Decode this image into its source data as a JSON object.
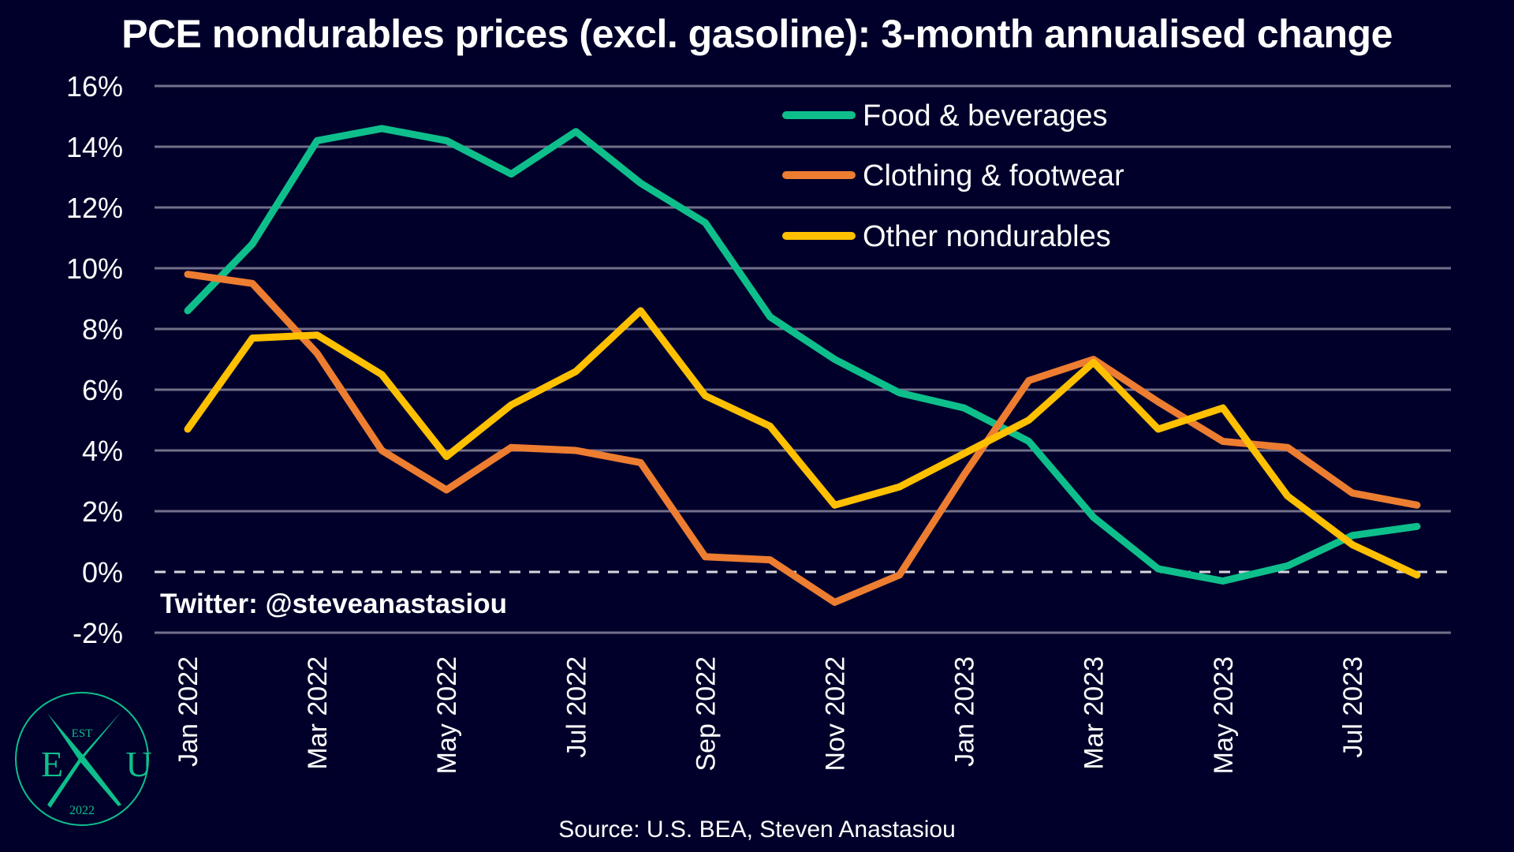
{
  "chart_data": {
    "type": "line",
    "title": "PCE nondurables prices (excl. gasoline): 3-month annualised change",
    "xlabel": "",
    "ylabel": "",
    "x": [
      "Jan 2022",
      "Feb 2022",
      "Mar 2022",
      "Apr 2022",
      "May 2022",
      "Jun 2022",
      "Jul 2022",
      "Aug 2022",
      "Sep 2022",
      "Oct 2022",
      "Nov 2022",
      "Dec 2022",
      "Jan 2023",
      "Feb 2023",
      "Mar 2023",
      "Apr 2023",
      "May 2023",
      "Jun 2023",
      "Jul 2023",
      "Aug 2023"
    ],
    "x_tick_labels": [
      "Jan 2022",
      "Mar 2022",
      "May 2022",
      "Jul 2022",
      "Sep 2022",
      "Nov 2022",
      "Jan 2023",
      "Mar 2023",
      "May 2023",
      "Jul 2023"
    ],
    "ylim": [
      -2,
      16
    ],
    "y_ticks": [
      -2,
      0,
      2,
      4,
      6,
      8,
      10,
      12,
      14,
      16
    ],
    "y_tick_labels": [
      "-2%",
      "0%",
      "2%",
      "4%",
      "6%",
      "8%",
      "10%",
      "12%",
      "14%",
      "16%"
    ],
    "grid": true,
    "zero_line": "dashed",
    "legend_position": "top-right",
    "series": [
      {
        "name": "Food & beverages",
        "color": "#0ebf8c",
        "values": [
          8.6,
          10.8,
          14.2,
          14.6,
          14.2,
          13.1,
          14.5,
          12.8,
          11.5,
          8.4,
          7.0,
          5.9,
          5.4,
          4.3,
          1.8,
          0.1,
          -0.3,
          0.2,
          1.2,
          1.5
        ]
      },
      {
        "name": "Clothing & footwear",
        "color": "#ed7d31",
        "values": [
          9.8,
          9.5,
          7.2,
          4.0,
          2.7,
          4.1,
          4.0,
          3.6,
          0.5,
          0.4,
          -1.0,
          -0.1,
          3.2,
          6.3,
          7.0,
          5.6,
          4.3,
          4.1,
          2.6,
          2.2
        ]
      },
      {
        "name": "Other nondurables",
        "color": "#ffc000",
        "values": [
          4.7,
          7.7,
          7.8,
          6.5,
          3.8,
          5.5,
          6.6,
          8.6,
          5.8,
          4.8,
          2.2,
          2.8,
          3.9,
          5.0,
          6.9,
          4.7,
          5.4,
          2.5,
          0.9,
          -0.1
        ]
      }
    ]
  },
  "annotations": {
    "watermark": "Twitter: @steveanastasiou",
    "source": "Source: U.S. BEA, Steven Anastasiou"
  },
  "logo": {
    "top_text": "EST",
    "left_letter": "E",
    "right_letter": "U",
    "bottom_text": "2022",
    "color": "#0ebf8c"
  },
  "colors": {
    "background": "#00002a",
    "gridline": "#72708a",
    "zero_line": "#d8d8e0"
  }
}
